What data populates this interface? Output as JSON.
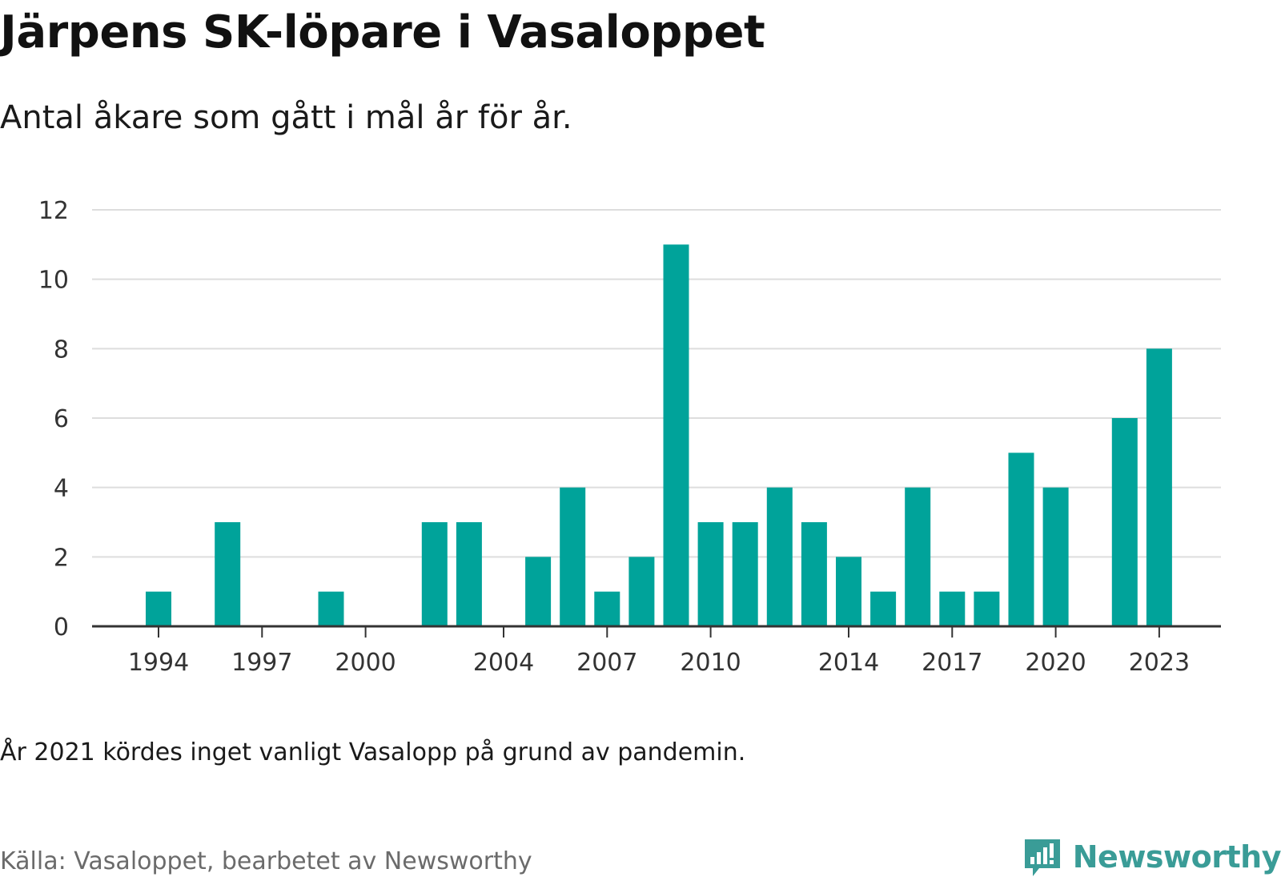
{
  "header": {
    "title": "Järpens SK-löpare i Vasaloppet",
    "subtitle": "Antal åkare som gått i mål år för år."
  },
  "footer": {
    "note": "År 2021 kördes inget vanligt Vasalopp på grund av pandemin.",
    "source": "Källa: Vasaloppet, bearbetet av Newsworthy",
    "brand": "Newsworthy"
  },
  "colors": {
    "bar": "#00a39a",
    "grid": "#dddddd",
    "axis": "#333333",
    "brand": "#3a9c97"
  },
  "chart_data": {
    "type": "bar",
    "title": "Järpens SK-löpare i Vasaloppet",
    "subtitle": "Antal åkare som gått i mål år för år.",
    "x": [
      1994,
      1995,
      1996,
      1997,
      1998,
      1999,
      2000,
      2001,
      2002,
      2003,
      2004,
      2005,
      2006,
      2007,
      2008,
      2009,
      2010,
      2011,
      2012,
      2013,
      2014,
      2015,
      2016,
      2017,
      2018,
      2019,
      2020,
      2021,
      2022,
      2023
    ],
    "values": [
      1,
      0,
      3,
      0,
      0,
      1,
      0,
      0,
      3,
      3,
      0,
      2,
      4,
      1,
      2,
      11,
      3,
      3,
      4,
      3,
      2,
      1,
      4,
      1,
      1,
      5,
      4,
      0,
      6,
      8
    ],
    "xticks": [
      1994,
      1997,
      2000,
      2004,
      2007,
      2010,
      2014,
      2017,
      2020,
      2023
    ],
    "yticks": [
      0,
      2,
      4,
      6,
      8,
      10,
      12
    ],
    "ylim": [
      0,
      12
    ],
    "xlabel": "",
    "ylabel": "",
    "grid": true,
    "legend": "none"
  }
}
